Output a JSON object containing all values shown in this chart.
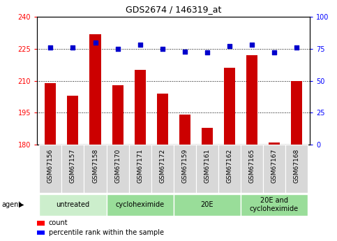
{
  "title": "GDS2674 / 146319_at",
  "samples": [
    "GSM67156",
    "GSM67157",
    "GSM67158",
    "GSM67170",
    "GSM67171",
    "GSM67172",
    "GSM67159",
    "GSM67161",
    "GSM67162",
    "GSM67165",
    "GSM67167",
    "GSM67168"
  ],
  "counts": [
    209,
    203,
    232,
    208,
    215,
    204,
    194,
    188,
    216,
    222,
    181,
    210
  ],
  "percentiles": [
    76,
    76,
    80,
    75,
    78,
    75,
    73,
    72,
    77,
    78,
    72,
    76
  ],
  "ylim_left": [
    180,
    240
  ],
  "ylim_right": [
    0,
    100
  ],
  "yticks_left": [
    180,
    195,
    210,
    225,
    240
  ],
  "yticks_right": [
    0,
    25,
    50,
    75,
    100
  ],
  "bar_color": "#cc0000",
  "dot_color": "#0000cc",
  "bar_width": 0.5,
  "group_defs": [
    {
      "label": "untreated",
      "xstart": -0.5,
      "xend": 2.5,
      "color": "#cceecc"
    },
    {
      "label": "cycloheximide",
      "xstart": 2.5,
      "xend": 5.5,
      "color": "#99dd99"
    },
    {
      "label": "20E",
      "xstart": 5.5,
      "xend": 8.5,
      "color": "#99dd99"
    },
    {
      "label": "20E and\ncycloheximide",
      "xstart": 8.5,
      "xend": 11.5,
      "color": "#99dd99"
    }
  ],
  "legend_count_label": "count",
  "legend_pct_label": "percentile rank within the sample",
  "agent_label": "agent",
  "title_fontsize": 9,
  "tick_label_fontsize": 6.5,
  "axis_tick_fontsize": 7,
  "group_label_fontsize": 7,
  "legend_fontsize": 7
}
